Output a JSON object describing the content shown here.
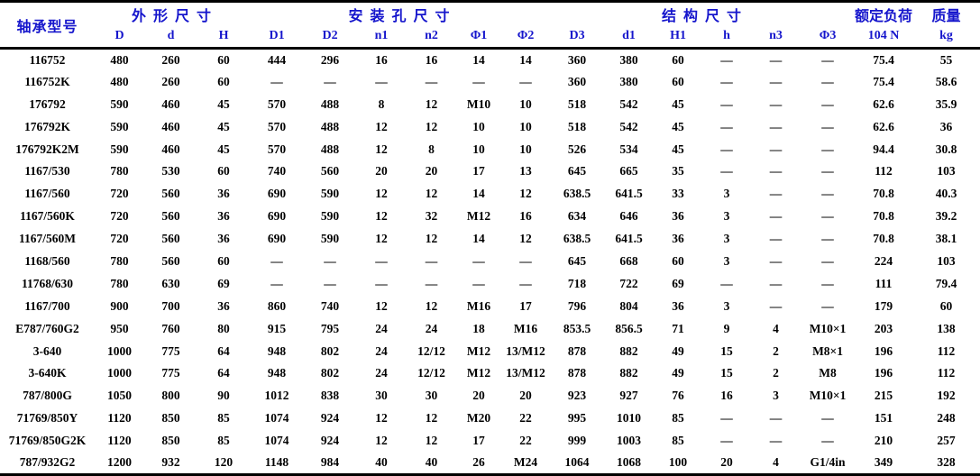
{
  "table": {
    "header": {
      "model_label": "轴承型号",
      "groups": [
        {
          "label": "外 形 尺 寸",
          "span": 3
        },
        {
          "label": "安 装 孔 尺 寸",
          "span": 6
        },
        {
          "label": "结 构 尺 寸",
          "span": 6
        },
        {
          "label": "额定负荷",
          "span": 1
        },
        {
          "label": "质量",
          "span": 1
        }
      ],
      "subheaders": [
        "D",
        "d",
        "H",
        "D1",
        "D2",
        "n1",
        "n2",
        "Φ1",
        "Φ2",
        "D3",
        "d1",
        "H1",
        "h",
        "n3",
        "Φ3",
        "104 N",
        "kg"
      ]
    },
    "rows": [
      [
        "116752",
        "480",
        "260",
        "60",
        "444",
        "296",
        "16",
        "16",
        "14",
        "14",
        "360",
        "380",
        "60",
        "—",
        "—",
        "—",
        "75.4",
        "55"
      ],
      [
        "116752K",
        "480",
        "260",
        "60",
        "—",
        "—",
        "—",
        "—",
        "—",
        "—",
        "360",
        "380",
        "60",
        "—",
        "—",
        "—",
        "75.4",
        "58.6"
      ],
      [
        "176792",
        "590",
        "460",
        "45",
        "570",
        "488",
        "8",
        "12",
        "M10",
        "10",
        "518",
        "542",
        "45",
        "—",
        "—",
        "—",
        "62.6",
        "35.9"
      ],
      [
        "176792K",
        "590",
        "460",
        "45",
        "570",
        "488",
        "12",
        "12",
        "10",
        "10",
        "518",
        "542",
        "45",
        "—",
        "—",
        "—",
        "62.6",
        "36"
      ],
      [
        "176792K2M",
        "590",
        "460",
        "45",
        "570",
        "488",
        "12",
        "8",
        "10",
        "10",
        "526",
        "534",
        "45",
        "—",
        "—",
        "—",
        "94.4",
        "30.8"
      ],
      [
        "1167/530",
        "780",
        "530",
        "60",
        "740",
        "560",
        "20",
        "20",
        "17",
        "13",
        "645",
        "665",
        "35",
        "—",
        "—",
        "—",
        "112",
        "103"
      ],
      [
        "1167/560",
        "720",
        "560",
        "36",
        "690",
        "590",
        "12",
        "12",
        "14",
        "12",
        "638.5",
        "641.5",
        "33",
        "3",
        "—",
        "—",
        "70.8",
        "40.3"
      ],
      [
        "1167/560K",
        "720",
        "560",
        "36",
        "690",
        "590",
        "12",
        "32",
        "M12",
        "16",
        "634",
        "646",
        "36",
        "3",
        "—",
        "—",
        "70.8",
        "39.2"
      ],
      [
        "1167/560M",
        "720",
        "560",
        "36",
        "690",
        "590",
        "12",
        "12",
        "14",
        "12",
        "638.5",
        "641.5",
        "36",
        "3",
        "—",
        "—",
        "70.8",
        "38.1"
      ],
      [
        "1168/560",
        "780",
        "560",
        "60",
        "—",
        "—",
        "—",
        "—",
        "—",
        "—",
        "645",
        "668",
        "60",
        "3",
        "—",
        "—",
        "224",
        "103"
      ],
      [
        "11768/630",
        "780",
        "630",
        "69",
        "—",
        "—",
        "—",
        "—",
        "—",
        "—",
        "718",
        "722",
        "69",
        "—",
        "—",
        "—",
        "111",
        "79.4"
      ],
      [
        "1167/700",
        "900",
        "700",
        "36",
        "860",
        "740",
        "12",
        "12",
        "M16",
        "17",
        "796",
        "804",
        "36",
        "3",
        "—",
        "—",
        "179",
        "60"
      ],
      [
        "E787/760G2",
        "950",
        "760",
        "80",
        "915",
        "795",
        "24",
        "24",
        "18",
        "M16",
        "853.5",
        "856.5",
        "71",
        "9",
        "4",
        "M10×1",
        "203",
        "138"
      ],
      [
        "3-640",
        "1000",
        "775",
        "64",
        "948",
        "802",
        "24",
        "12/12",
        "M12",
        "13/M12",
        "878",
        "882",
        "49",
        "15",
        "2",
        "M8×1",
        "196",
        "112"
      ],
      [
        "3-640K",
        "1000",
        "775",
        "64",
        "948",
        "802",
        "24",
        "12/12",
        "M12",
        "13/M12",
        "878",
        "882",
        "49",
        "15",
        "2",
        "M8",
        "196",
        "112"
      ],
      [
        "787/800G",
        "1050",
        "800",
        "90",
        "1012",
        "838",
        "30",
        "30",
        "20",
        "20",
        "923",
        "927",
        "76",
        "16",
        "3",
        "M10×1",
        "215",
        "192"
      ],
      [
        "71769/850Y",
        "1120",
        "850",
        "85",
        "1074",
        "924",
        "12",
        "12",
        "M20",
        "22",
        "995",
        "1010",
        "85",
        "—",
        "—",
        "—",
        "151",
        "248"
      ],
      [
        "71769/850G2K",
        "1120",
        "850",
        "85",
        "1074",
        "924",
        "12",
        "12",
        "17",
        "22",
        "999",
        "1003",
        "85",
        "—",
        "—",
        "—",
        "210",
        "257"
      ],
      [
        "787/932G2",
        "1200",
        "932",
        "120",
        "1148",
        "984",
        "40",
        "40",
        "26",
        "M24",
        "1064",
        "1068",
        "100",
        "20",
        "4",
        "G1/4in",
        "349",
        "328"
      ]
    ]
  },
  "colors": {
    "header_text": "#1515cc",
    "body_text": "#000000",
    "border": "#000000",
    "background": "#ffffff"
  }
}
